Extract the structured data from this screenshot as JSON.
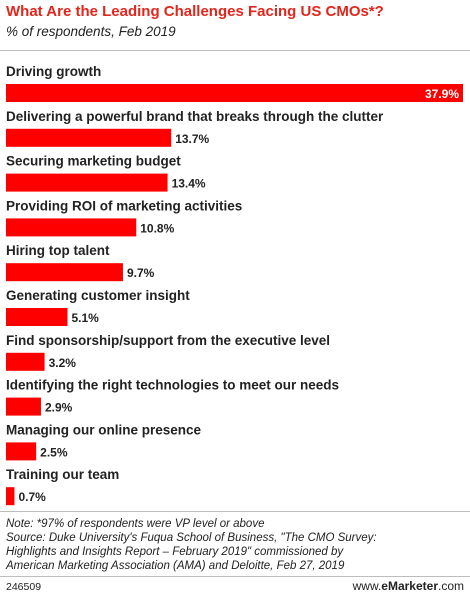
{
  "header": {
    "title": "What Are the Leading Challenges Facing US CMOs*?",
    "subtitle": "% of respondents, Feb 2019"
  },
  "chart_data": {
    "type": "bar",
    "orientation": "horizontal",
    "title": "What Are the Leading Challenges Facing US CMOs*?",
    "subtitle": "% of respondents, Feb 2019",
    "categories": [
      "Driving growth",
      "Delivering a powerful brand that breaks through the clutter",
      "Securing marketing budget",
      "Providing ROI of marketing activities",
      "Hiring top talent",
      "Generating customer insight",
      "Find sponsorship/support from the executive level",
      "Identifying the right technologies to meet our needs",
      "Managing our online presence",
      "Training our team"
    ],
    "values": [
      37.9,
      13.7,
      13.4,
      10.8,
      9.7,
      5.1,
      3.2,
      2.9,
      2.5,
      0.7
    ],
    "value_labels": [
      "37.9%",
      "13.7%",
      "13.4%",
      "10.8%",
      "9.7%",
      "5.1%",
      "3.2%",
      "2.9%",
      "2.5%",
      "0.7%"
    ],
    "xlim": [
      0,
      37.9
    ],
    "grid": false,
    "legend": "none",
    "bar_color": "#ff0000"
  },
  "footer": {
    "note_lines": [
      "Note: *97% of respondents were VP level or above",
      "Source: Duke University's Fuqua School of Business, \"The CMO Survey:",
      "Highlights and Insights Report – February 2019\" commissioned by",
      "American Marketing Association (AMA) and Deloitte, Feb 27, 2019"
    ],
    "chart_id": "246509",
    "brand_prefix": "www.",
    "brand_name": "eMarketer",
    "brand_suffix": ".com"
  }
}
